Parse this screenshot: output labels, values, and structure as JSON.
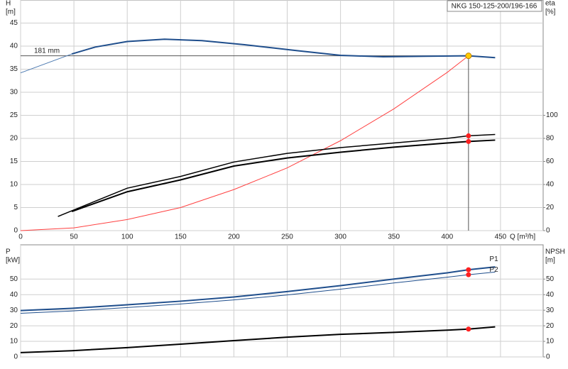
{
  "chart_data": [
    {
      "type": "line",
      "title": "NKG 150-125-200/196-166",
      "ylabel": [
        "H",
        "[m]"
      ],
      "y2label": [
        "eta",
        "[%]"
      ],
      "xlabel": "Q [m³/h]",
      "annotation": "181 mm",
      "xlim": [
        0,
        490
      ],
      "xticks": [
        0,
        50,
        100,
        150,
        200,
        250,
        300,
        350,
        400,
        450
      ],
      "xtick_labels": true,
      "ylim": [
        0,
        50
      ],
      "yticks": [
        0,
        5,
        10,
        15,
        20,
        25,
        30,
        35,
        40,
        45
      ],
      "y2lim": [
        0,
        200
      ],
      "y2ticks": [
        0,
        20,
        40,
        60,
        80,
        100
      ],
      "grid": true,
      "series": [
        {
          "color": "#1f4e8c",
          "width": 2,
          "x": [
            48,
            70,
            100,
            135,
            170,
            210,
            260,
            300,
            340,
            380,
            420,
            445
          ],
          "values": [
            38.3,
            39.8,
            41,
            41.5,
            41.2,
            40.3,
            39,
            38,
            37.7,
            37.8,
            37.9,
            37.5
          ]
        },
        {
          "color": "#4a78b0",
          "width": 1,
          "x": [
            0,
            48
          ],
          "values": [
            34.2,
            38.3
          ]
        },
        {
          "color": "#ff4040",
          "width": 1,
          "x": [
            0,
            50,
            100,
            150,
            200,
            250,
            300,
            350,
            400,
            420
          ],
          "values": [
            0,
            0.6,
            2.4,
            5,
            8.9,
            13.6,
            19.5,
            26.4,
            34.3,
            37.9
          ]
        },
        {
          "color": "#000000",
          "width": 1.5,
          "axis": "y2",
          "x": [
            35,
            100,
            150,
            200,
            250,
            300,
            350,
            400,
            420,
            445
          ],
          "values": [
            12.3,
            36.8,
            47,
            59.5,
            67,
            72,
            76,
            80,
            82.2,
            83.4
          ]
        },
        {
          "color": "#000000",
          "width": 2,
          "axis": "y2",
          "x": [
            48,
            100,
            150,
            200,
            250,
            300,
            350,
            400,
            420,
            445
          ],
          "values": [
            16.6,
            33.7,
            44,
            56,
            63,
            68,
            72.4,
            76,
            77.3,
            78.5
          ]
        }
      ],
      "duty_point": {
        "x": 420,
        "y": 37.9,
        "color": "#ffcc00"
      },
      "points": [
        {
          "x": 420,
          "y": 82.2,
          "axis": "y2",
          "color": "#ff2020"
        },
        {
          "x": 420,
          "y": 77.3,
          "axis": "y2",
          "color": "#ff2020"
        }
      ]
    },
    {
      "type": "line",
      "ylabel": [
        "P",
        "[kW]"
      ],
      "y2label": [
        "NPSH",
        "[m]"
      ],
      "xlim": [
        0,
        490
      ],
      "xticks": [
        0,
        50,
        100,
        150,
        200,
        250,
        300,
        350,
        400,
        450
      ],
      "xtick_labels": false,
      "ylim": [
        0,
        72
      ],
      "yticks": [
        0,
        10,
        20,
        30,
        40,
        50
      ],
      "y2lim": [
        0,
        72
      ],
      "y2ticks": [
        0,
        10,
        20,
        30,
        40,
        50
      ],
      "grid": true,
      "series": [
        {
          "name": "P1",
          "color": "#1f4e8c",
          "width": 2,
          "x": [
            0,
            48,
            100,
            150,
            200,
            250,
            300,
            350,
            400,
            420,
            445
          ],
          "values": [
            29.8,
            31.2,
            33.5,
            35.8,
            38.5,
            42,
            45.8,
            50,
            54,
            56,
            57.8
          ]
        },
        {
          "name": "P2",
          "color": "#1f4e8c",
          "width": 1,
          "x": [
            0,
            48,
            100,
            150,
            200,
            250,
            300,
            350,
            400,
            420,
            445
          ],
          "values": [
            28,
            29.5,
            31.7,
            34,
            36.6,
            39.8,
            43.5,
            47.5,
            51.2,
            52.8,
            54.5
          ]
        },
        {
          "color": "#000000",
          "width": 2,
          "axis": "y2",
          "x": [
            0,
            48,
            100,
            150,
            200,
            250,
            300,
            350,
            400,
            420,
            445
          ],
          "values": [
            2.8,
            4,
            6,
            8.2,
            10.5,
            12.7,
            14.5,
            15.8,
            17.2,
            17.9,
            19.3
          ]
        }
      ],
      "points": [
        {
          "x": 420,
          "y": 56,
          "color": "#ff2020"
        },
        {
          "x": 420,
          "y": 52.8,
          "color": "#ff2020"
        },
        {
          "x": 420,
          "y": 17.9,
          "axis": "y2",
          "color": "#ff2020"
        }
      ]
    }
  ]
}
